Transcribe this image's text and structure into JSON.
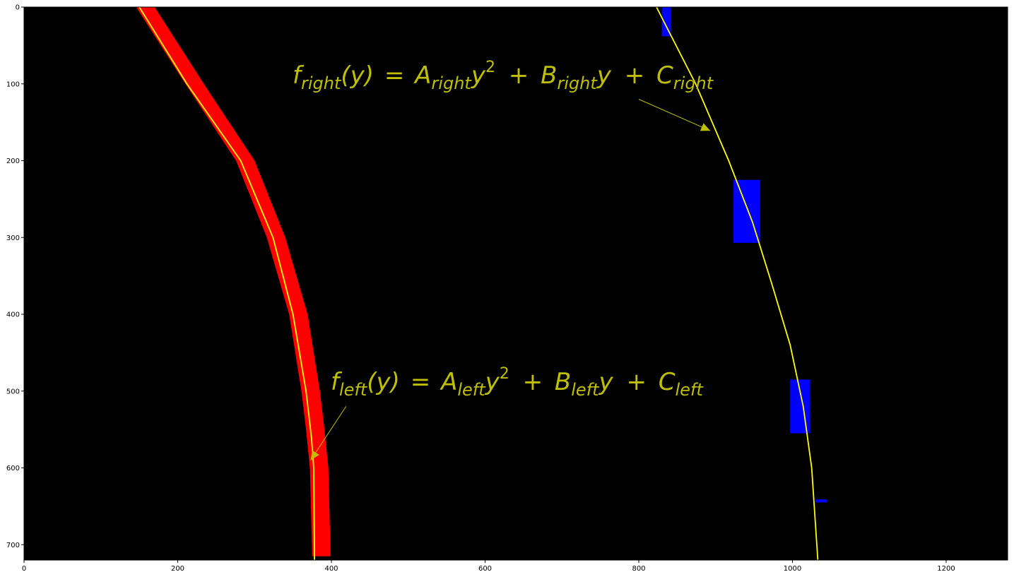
{
  "chart_data": {
    "type": "scatter",
    "title": "",
    "xlabel": "",
    "ylabel": "",
    "xlim": [
      0,
      1280
    ],
    "ylim": [
      720,
      0
    ],
    "y_inverted": true,
    "grid": false,
    "background": "#000000",
    "x_ticks": [
      "0",
      "200",
      "400",
      "600",
      "800",
      "1000",
      "1200"
    ],
    "y_ticks": [
      "0",
      "100",
      "200",
      "300",
      "400",
      "500",
      "600",
      "700"
    ],
    "left_lane_pixels": {
      "color": "#ff0000",
      "half_width": 12,
      "y_range": [
        0,
        715
      ],
      "center_x_at_y": [
        [
          0,
          158
        ],
        [
          100,
          222
        ],
        [
          200,
          288
        ],
        [
          300,
          328
        ],
        [
          400,
          357
        ],
        [
          500,
          373
        ],
        [
          550,
          379
        ],
        [
          600,
          384
        ],
        [
          715,
          387
        ]
      ],
      "note": "curved band"
    },
    "right_lane_pixels": {
      "color": "#0000ff",
      "clusters": [
        {
          "y": [
            0,
            38
          ],
          "x": [
            830,
            842
          ]
        },
        {
          "y": [
            225,
            307
          ],
          "x": [
            923,
            958
          ]
        },
        {
          "y": [
            485,
            555
          ],
          "x": [
            997,
            1023
          ]
        },
        {
          "y": [
            641,
            645
          ],
          "x": [
            1030,
            1045
          ]
        }
      ]
    },
    "fits": [
      {
        "side": "left",
        "color": "#ffff00",
        "points": [
          [
            150,
            0
          ],
          [
            212,
            100
          ],
          [
            282,
            200
          ],
          [
            324,
            300
          ],
          [
            350,
            400
          ],
          [
            367,
            500
          ],
          [
            374,
            560
          ],
          [
            377,
            600
          ],
          [
            378,
            720
          ]
        ]
      },
      {
        "side": "right",
        "color": "#ffff00",
        "points": [
          [
            823,
            0
          ],
          [
            874,
            100
          ],
          [
            917,
            200
          ],
          [
            948,
            280
          ],
          [
            973,
            360
          ],
          [
            997,
            440
          ],
          [
            1014,
            520
          ],
          [
            1025,
            600
          ],
          [
            1033,
            720
          ]
        ]
      }
    ],
    "annotations": [
      {
        "id": "right",
        "text": "f_right(y) = A_right y^2 + B_right y + C_right",
        "base": "f",
        "sub": "right",
        "color": "#bfbf00",
        "arrow_to": [
          893,
          161
        ],
        "arrow_from": [
          800,
          120
        ]
      },
      {
        "id": "left",
        "text": "f_left(y) = A_left y^2 + B_left y + C_left",
        "base": "f",
        "sub": "left",
        "color": "#bfbf00",
        "arrow_to": [
          373,
          590
        ],
        "arrow_from": [
          419,
          520
        ]
      }
    ]
  },
  "labels": {
    "eq": "=",
    "paren_y": "(y)",
    "A": "A",
    "B": "B",
    "C": "C",
    "y": "y",
    "sq": "2",
    "plus": "+",
    "right": "right",
    "left": "left"
  }
}
